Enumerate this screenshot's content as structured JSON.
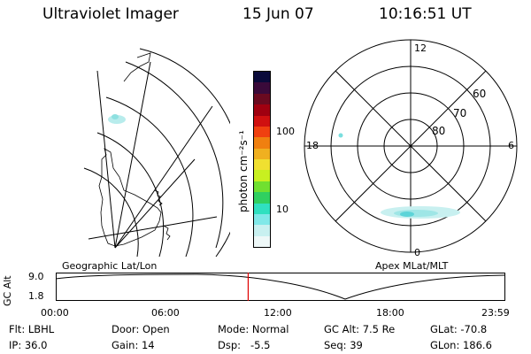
{
  "header": {
    "instrument": "Ultraviolet Imager",
    "date": "15 Jun 07",
    "time": "10:16:51 UT"
  },
  "colorbar": {
    "unit_label": "photon cm⁻²s⁻¹",
    "tick_100": "100",
    "tick_10": "10",
    "colors": [
      "#0a0a3a",
      "#3a0a3a",
      "#6a0a20",
      "#a00010",
      "#d01010",
      "#f04010",
      "#f08010",
      "#f0b020",
      "#f0e030",
      "#c8f020",
      "#70e030",
      "#30d060",
      "#30e0c0",
      "#80e8e8",
      "#c8f0f0",
      "#eef8f8"
    ]
  },
  "geo_map": {
    "label": "Geographic Lat/Lon"
  },
  "polar_plot": {
    "label": "Apex MLat/MLT",
    "mlt_labels": {
      "top": "12",
      "left": "18",
      "right": "6",
      "bottom": "0"
    },
    "lat_labels": [
      "60",
      "70",
      "80"
    ]
  },
  "timeline": {
    "axis_label": "GC Alt",
    "y_top": "9.0",
    "y_bottom": "1.8",
    "ticks": [
      "00:00",
      "06:00",
      "12:00",
      "18:00",
      "23:59"
    ],
    "current_time_fraction": 0.428
  },
  "info": {
    "flt_label": "Flt:",
    "flt_value": "LBHL",
    "ip_label": "IP:",
    "ip_value": "36.0",
    "door_label": "Door:",
    "door_value": "Open",
    "gain_label": "Gain:",
    "gain_value": "14",
    "mode_label": "Mode:",
    "mode_value": "Normal",
    "dsp_label": "Dsp:",
    "dsp_value": "-5.5",
    "gcalt_label": "GC Alt:",
    "gcalt_value": "7.5 Re",
    "seq_label": "Seq:",
    "seq_value": "39",
    "glat_label": "GLat:",
    "glat_value": "-70.8",
    "glon_label": "GLon:",
    "glon_value": "186.6"
  },
  "colors": {
    "marker": "#e00000",
    "line": "#000000"
  }
}
